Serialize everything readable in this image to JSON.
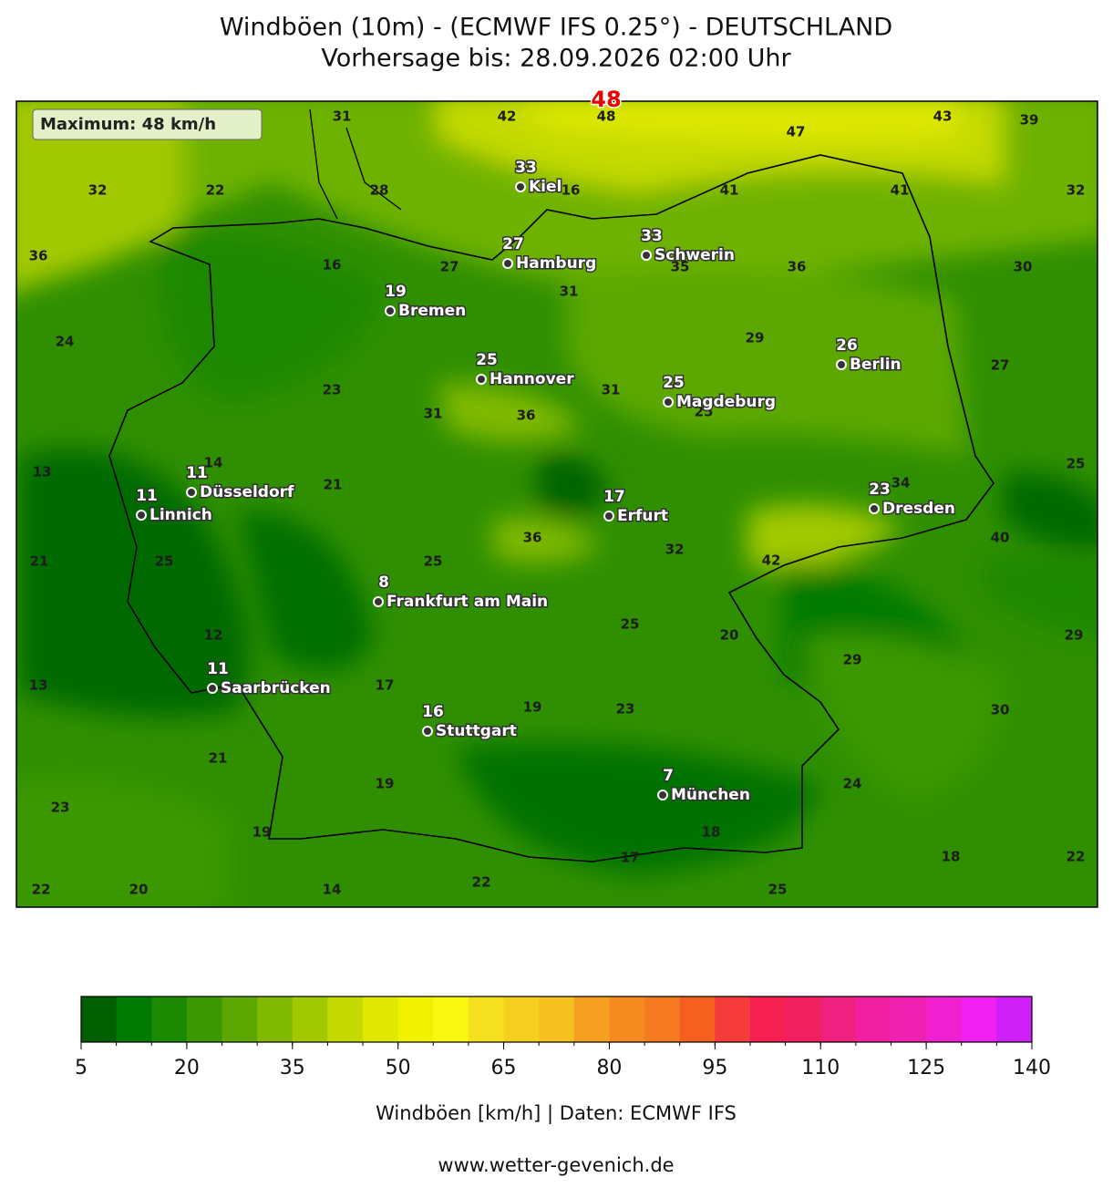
{
  "header": {
    "title": "Windböen (10m) - (ECMWF IFS 0.25°) - DEUTSCHLAND",
    "subtitle": "Vorhersage bis: 28.09.2026 02:00 Uhr"
  },
  "map": {
    "max_marker": 48,
    "max_box": "Maximum: 48 km/h",
    "cities": [
      {
        "name": "Kiel",
        "value": 33
      },
      {
        "name": "Hamburg",
        "value": 27
      },
      {
        "name": "Schwerin",
        "value": 33
      },
      {
        "name": "Bremen",
        "value": 19
      },
      {
        "name": "Berlin",
        "value": 26
      },
      {
        "name": "Hannover",
        "value": 25
      },
      {
        "name": "Magdeburg",
        "value": 25
      },
      {
        "name": "Düsseldorf",
        "value": 11
      },
      {
        "name": "Linnich",
        "value": 11
      },
      {
        "name": "Erfurt",
        "value": 17
      },
      {
        "name": "Dresden",
        "value": 23
      },
      {
        "name": "Frankfurt am Main",
        "value": 8
      },
      {
        "name": "Saarbrücken",
        "value": 11
      },
      {
        "name": "Stuttgart",
        "value": 16
      },
      {
        "name": "München",
        "value": 7
      }
    ],
    "contour_labels": [
      31,
      42,
      48,
      43,
      39,
      47,
      32,
      22,
      28,
      16,
      41,
      41,
      32,
      36,
      16,
      27,
      35,
      36,
      30,
      31,
      24,
      29,
      27,
      23,
      31,
      31,
      36,
      25,
      14,
      13,
      21,
      34,
      25,
      36,
      32,
      42,
      40,
      21,
      25,
      25,
      25,
      20,
      29,
      12,
      29,
      13,
      17,
      19,
      23,
      30,
      21,
      19,
      24,
      23,
      19,
      18,
      17,
      18,
      22,
      22,
      22,
      20,
      14,
      25
    ]
  },
  "colorbar": {
    "lim": [
      5,
      140
    ],
    "ticks": [
      5,
      20,
      35,
      50,
      65,
      80,
      95,
      110,
      125,
      140
    ],
    "colors": [
      "#005f00",
      "#007a00",
      "#1a8800",
      "#3b9800",
      "#5ca800",
      "#80b900",
      "#a2c900",
      "#c4da00",
      "#e0e800",
      "#f2f200",
      "#f8f810",
      "#f5e020",
      "#f5d020",
      "#f5c020",
      "#f5a020",
      "#f58a20",
      "#f57a20",
      "#f56020",
      "#f53a3a",
      "#f52050",
      "#f02060",
      "#f02080",
      "#f020a0",
      "#f020b0",
      "#f020d0",
      "#f020f0",
      "#d020f8"
    ],
    "label": "Windböen [km/h] | Daten: ECMWF IFS"
  },
  "footer": "www.wetter-gevenich.de"
}
